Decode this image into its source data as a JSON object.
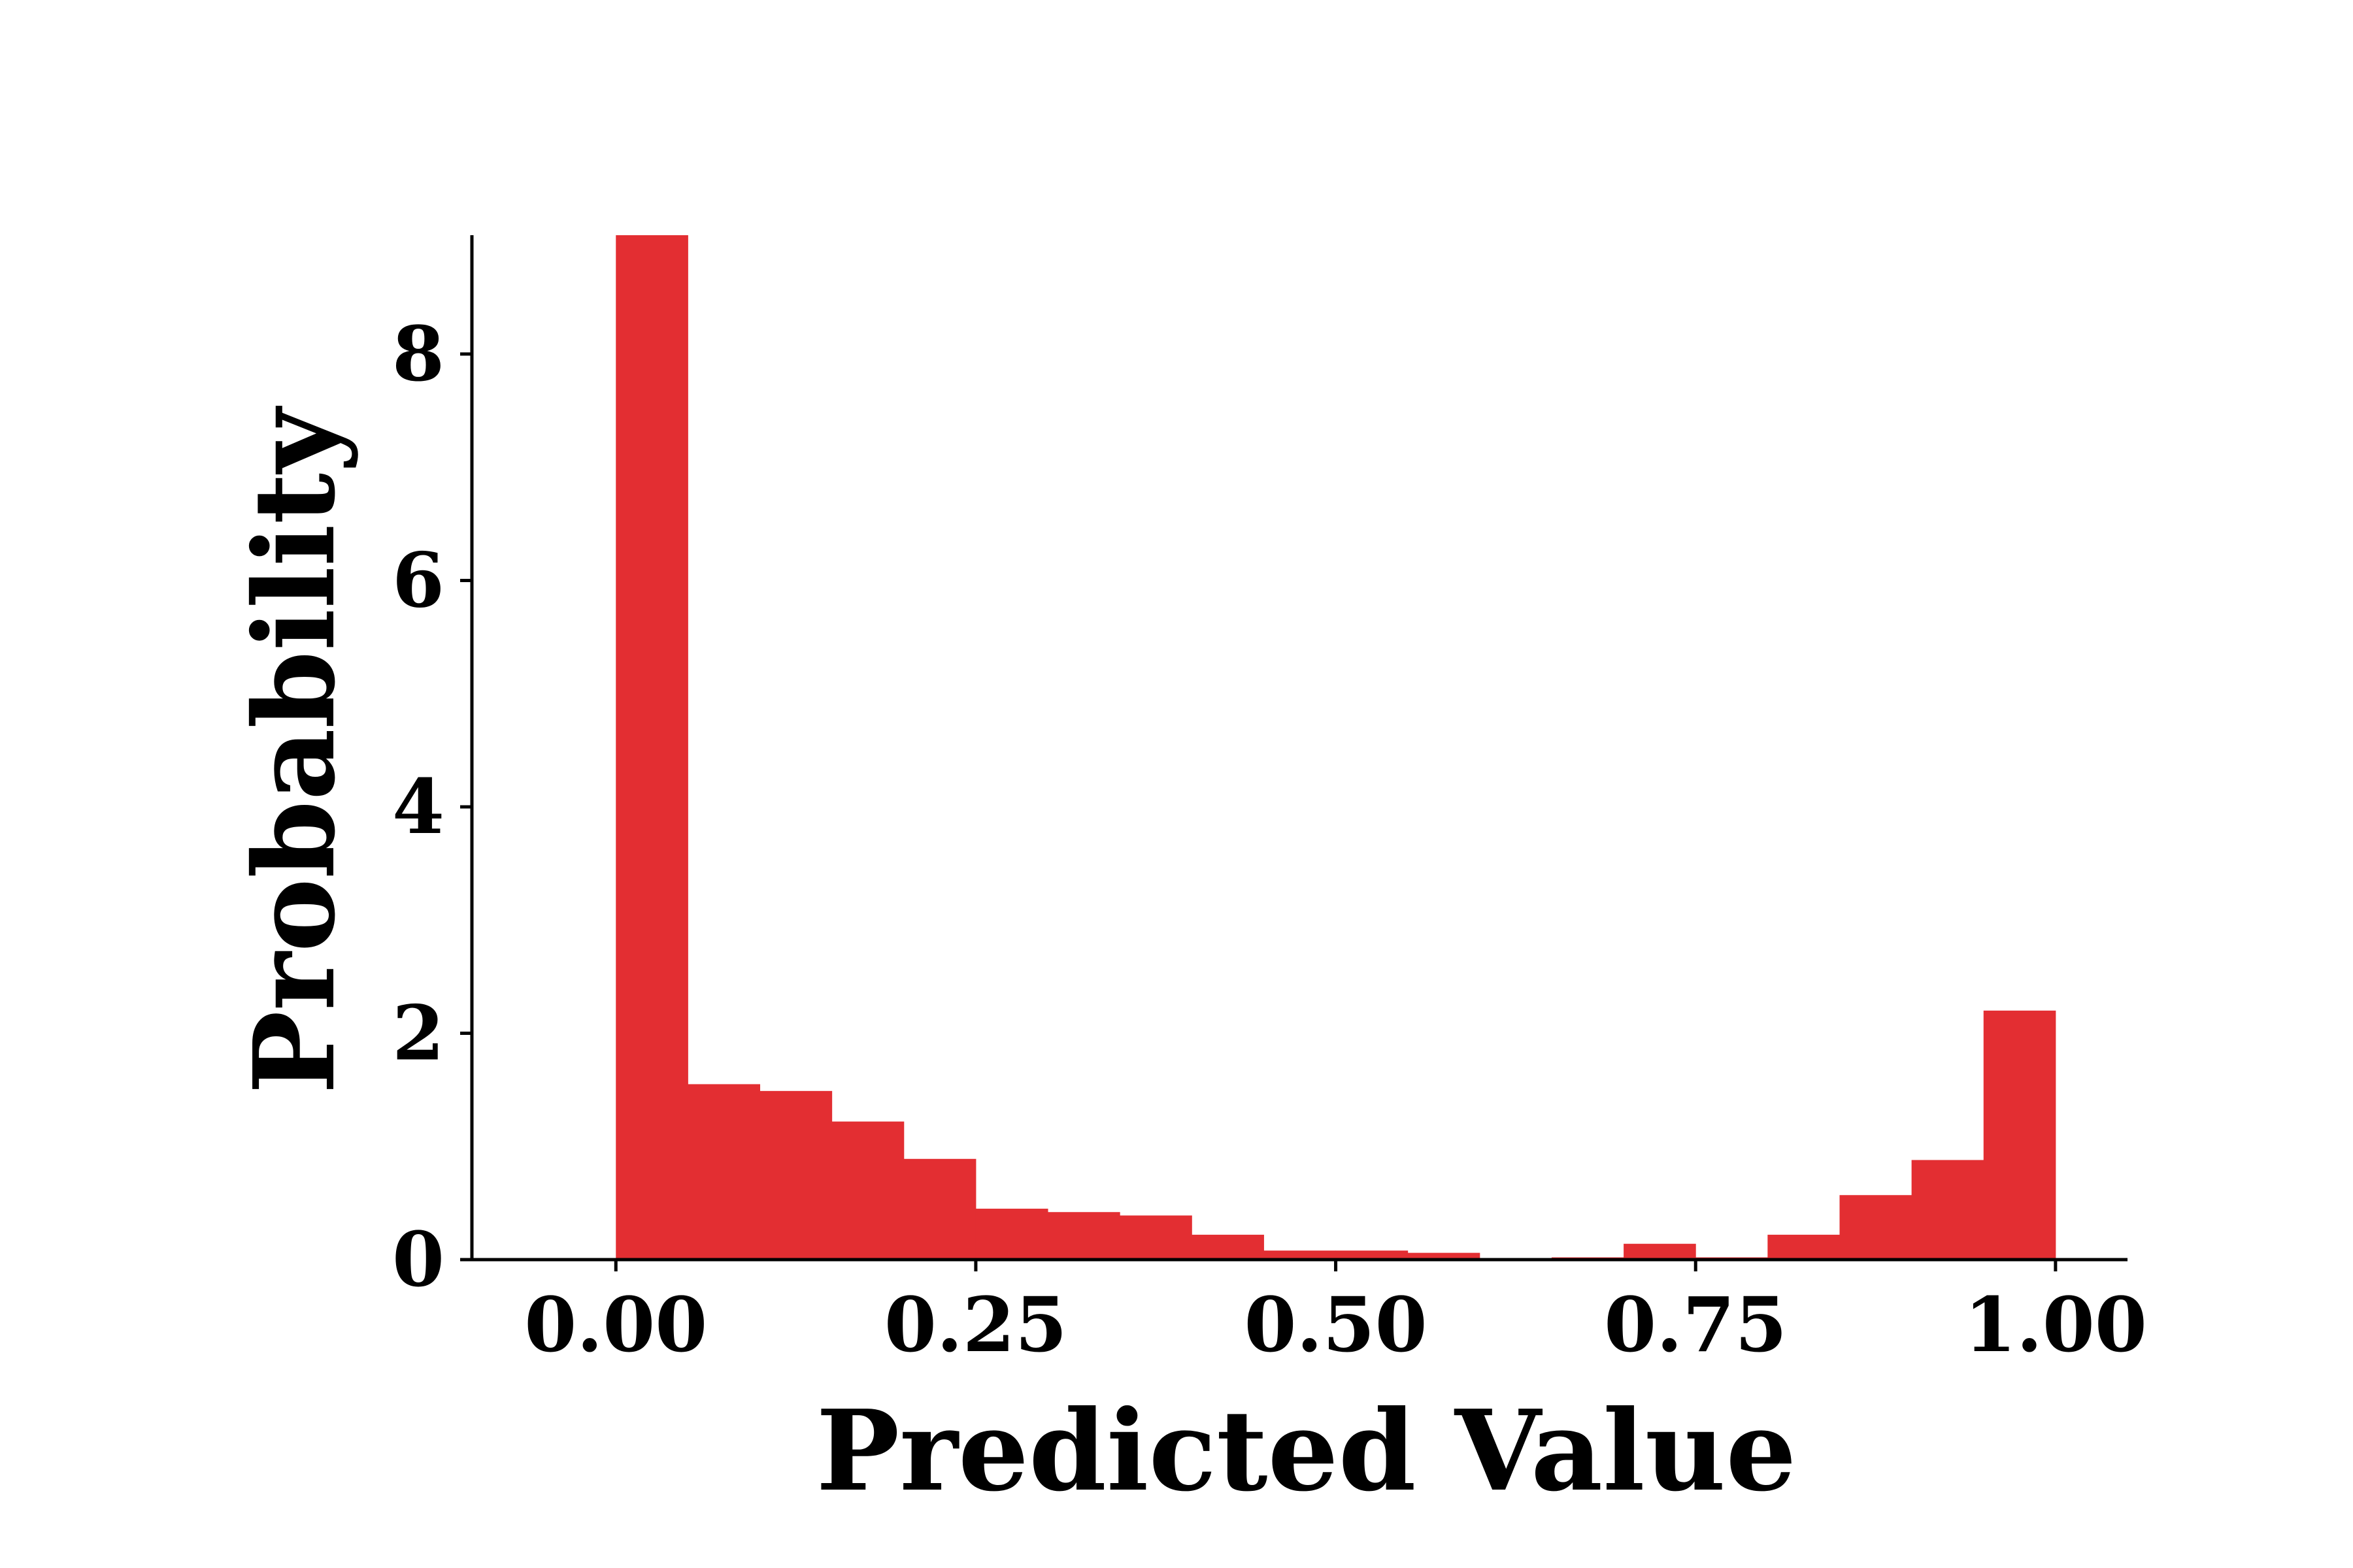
{
  "chart_data": {
    "type": "bar",
    "title": "",
    "xlabel": "Predicted Value",
    "ylabel": "Probability",
    "xlim": [
      -0.1,
      1.05
    ],
    "ylim": [
      0,
      9.05
    ],
    "xticks": [
      0.0,
      0.25,
      0.5,
      0.75,
      1.0
    ],
    "xtick_labels": [
      "0.00",
      "0.25",
      "0.50",
      "0.75",
      "1.00"
    ],
    "yticks": [
      0,
      2,
      4,
      6,
      8
    ],
    "ytick_labels": [
      "0",
      "2",
      "4",
      "6",
      "8"
    ],
    "bin_edges": [
      0.0,
      0.05,
      0.1,
      0.15,
      0.2,
      0.25,
      0.3,
      0.35,
      0.4,
      0.45,
      0.5,
      0.55,
      0.6,
      0.65,
      0.7,
      0.75,
      0.8,
      0.85,
      0.9,
      0.95,
      1.0
    ],
    "values": [
      9.05,
      1.55,
      1.49,
      1.22,
      0.89,
      0.45,
      0.42,
      0.39,
      0.22,
      0.08,
      0.08,
      0.06,
      0.0,
      0.02,
      0.14,
      0.02,
      0.22,
      0.57,
      0.88,
      2.2
    ],
    "color": "#e32e32",
    "grid": false
  }
}
